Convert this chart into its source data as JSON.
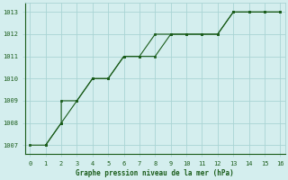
{
  "title": "Graphe pression niveau de la mer (hPa)",
  "line1_x": [
    0,
    1,
    2,
    2,
    3,
    4,
    4,
    5,
    6,
    6,
    7,
    8,
    9,
    9,
    10,
    11,
    12,
    13,
    13,
    14,
    15,
    16
  ],
  "line1_y": [
    1007,
    1007,
    1008,
    1009,
    1009,
    1010,
    1010,
    1010,
    1011,
    1011,
    1011,
    1011,
    1012,
    1012,
    1012,
    1012,
    1012,
    1013,
    1013,
    1013,
    1013,
    1013
  ],
  "line2_x": [
    1,
    2,
    3,
    4,
    5,
    6,
    7,
    8,
    9,
    10,
    11,
    12,
    13,
    14,
    15,
    16
  ],
  "line2_y": [
    1007,
    1008,
    1009,
    1010,
    1010,
    1011,
    1011,
    1012,
    1012,
    1012,
    1012,
    1012,
    1013,
    1013,
    1013,
    1013
  ],
  "line_color": "#1a5c1a",
  "bg_color": "#d4eeee",
  "grid_color": "#aad4d4",
  "text_color": "#1a5c1a",
  "xlim": [
    -0.3,
    16.3
  ],
  "ylim": [
    1006.6,
    1013.4
  ],
  "yticks": [
    1007,
    1008,
    1009,
    1010,
    1011,
    1012,
    1013
  ],
  "xticks": [
    0,
    1,
    2,
    3,
    4,
    5,
    6,
    7,
    8,
    9,
    10,
    11,
    12,
    13,
    14,
    15,
    16
  ]
}
